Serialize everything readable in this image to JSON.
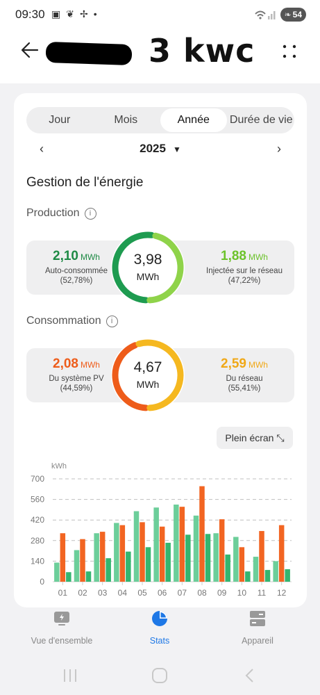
{
  "status_bar": {
    "time": "09:30",
    "battery": "54"
  },
  "header": {
    "handwritten_note": "3 kwc"
  },
  "tabs": [
    {
      "label": "Jour",
      "active": false
    },
    {
      "label": "Mois",
      "active": false
    },
    {
      "label": "Année",
      "active": true
    },
    {
      "label": "Durée de vie",
      "active": false
    }
  ],
  "period": {
    "year": "2025"
  },
  "energy": {
    "title": "Gestion de l'énergie",
    "production": {
      "title": "Production",
      "left": {
        "value": "2,10",
        "unit": "MWh",
        "label": "Auto-consommée",
        "pct": "(52,78%)"
      },
      "center": {
        "value": "3,98",
        "unit": "MWh"
      },
      "right": {
        "value": "1,88",
        "unit": "MWh",
        "label": "Injectée sur le réseau",
        "pct": "(47,22%)"
      },
      "split": 0.5278,
      "colors": {
        "left": "#1e9b50",
        "right": "#8fd34a"
      }
    },
    "consumption": {
      "title": "Consommation",
      "left": {
        "value": "2,08",
        "unit": "MWh",
        "label": "Du système PV",
        "pct": "(44,59%)"
      },
      "center": {
        "value": "4,67",
        "unit": "MWh"
      },
      "right": {
        "value": "2,59",
        "unit": "MWh",
        "label": "Du réseau",
        "pct": "(55,41%)"
      },
      "split": 0.4459,
      "colors": {
        "left": "#ee5c1a",
        "right": "#f5b820"
      }
    }
  },
  "fullscreen_label": "Plein écran",
  "chart_data": {
    "type": "bar",
    "ylabel": "kWh",
    "ylim": [
      0,
      700
    ],
    "yticks": [
      0,
      140,
      280,
      420,
      560,
      700
    ],
    "grid": true,
    "categories": [
      "01",
      "02",
      "03",
      "04",
      "05",
      "06",
      "07",
      "08",
      "09",
      "10",
      "11",
      "12"
    ],
    "series": [
      {
        "color": "#6cce9a",
        "values": [
          130,
          215,
          330,
          400,
          480,
          505,
          525,
          450,
          330,
          305,
          170,
          140
        ]
      },
      {
        "color": "#f26522",
        "values": [
          330,
          290,
          340,
          385,
          405,
          375,
          510,
          650,
          425,
          235,
          345,
          385
        ]
      },
      {
        "color": "#34b570",
        "values": [
          65,
          70,
          160,
          205,
          235,
          265,
          320,
          325,
          185,
          70,
          80,
          85
        ]
      }
    ]
  },
  "bottom_nav": [
    {
      "label": "Vue d'ensemble",
      "active": false
    },
    {
      "label": "Stats",
      "active": true
    },
    {
      "label": "Appareil",
      "active": false
    }
  ]
}
